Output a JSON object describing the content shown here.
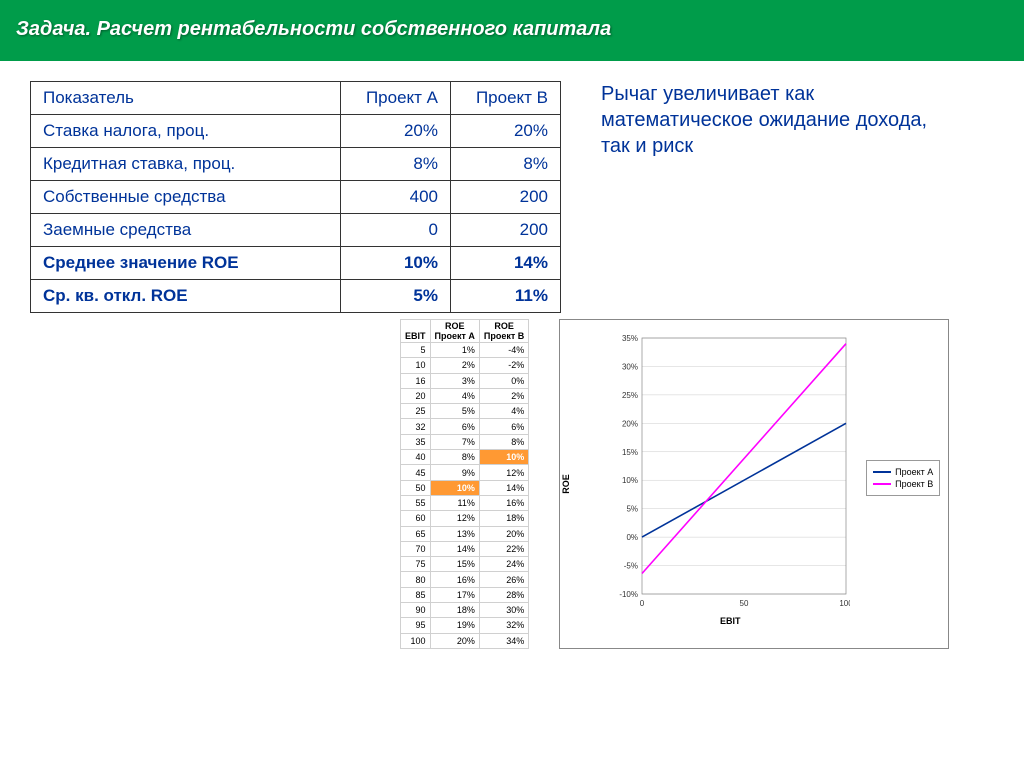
{
  "header": {
    "title": "Задача. Расчет рентабельности собственного капитала"
  },
  "main_table": {
    "headers": [
      "Показатель",
      "Проект А",
      "Проект В"
    ],
    "rows": [
      {
        "label": "Ставка налога, проц.",
        "a": "20%",
        "b": "20%",
        "bold": false
      },
      {
        "label": "Кредитная ставка, проц.",
        "a": "8%",
        "b": "8%",
        "bold": false
      },
      {
        "label": "Собственные средства",
        "a": "400",
        "b": "200",
        "bold": false
      },
      {
        "label": "Заемные средства",
        "a": "0",
        "b": "200",
        "bold": false
      },
      {
        "label": "Среднее значение ROE",
        "a": "10%",
        "b": "14%",
        "bold": true
      },
      {
        "label": "Ср. кв. откл. ROE",
        "a": "5%",
        "b": "11%",
        "bold": true
      }
    ]
  },
  "sidebar_text": "Рычаг увеличивает как математическое ожидание дохода, так и риск",
  "mini_table": {
    "headers": [
      "EBIT",
      "ROE Проект А",
      "ROE Проект В"
    ],
    "rows": [
      {
        "ebit": "5",
        "a": "1%",
        "b": "-4%"
      },
      {
        "ebit": "10",
        "a": "2%",
        "b": "-2%"
      },
      {
        "ebit": "16",
        "a": "3%",
        "b": "0%"
      },
      {
        "ebit": "20",
        "a": "4%",
        "b": "2%"
      },
      {
        "ebit": "25",
        "a": "5%",
        "b": "4%"
      },
      {
        "ebit": "32",
        "a": "6%",
        "b": "6%"
      },
      {
        "ebit": "35",
        "a": "7%",
        "b": "8%"
      },
      {
        "ebit": "40",
        "a": "8%",
        "b": "10%",
        "hl_b": true
      },
      {
        "ebit": "45",
        "a": "9%",
        "b": "12%"
      },
      {
        "ebit": "50",
        "a": "10%",
        "b": "14%",
        "hl_a": true
      },
      {
        "ebit": "55",
        "a": "11%",
        "b": "16%"
      },
      {
        "ebit": "60",
        "a": "12%",
        "b": "18%"
      },
      {
        "ebit": "65",
        "a": "13%",
        "b": "20%"
      },
      {
        "ebit": "70",
        "a": "14%",
        "b": "22%"
      },
      {
        "ebit": "75",
        "a": "15%",
        "b": "24%"
      },
      {
        "ebit": "80",
        "a": "16%",
        "b": "26%"
      },
      {
        "ebit": "85",
        "a": "17%",
        "b": "28%"
      },
      {
        "ebit": "90",
        "a": "18%",
        "b": "30%"
      },
      {
        "ebit": "95",
        "a": "19%",
        "b": "32%"
      },
      {
        "ebit": "100",
        "a": "20%",
        "b": "34%"
      }
    ]
  },
  "chart": {
    "type": "line",
    "xlabel": "EBIT",
    "ylabel": "ROE",
    "xlim": [
      0,
      100
    ],
    "ylim": [
      -10,
      35
    ],
    "yticks": [
      -10,
      -5,
      0,
      5,
      10,
      15,
      20,
      25,
      30,
      35
    ],
    "xticks": [
      0,
      50,
      100
    ],
    "grid_color": "#cccccc",
    "background_color": "#ffffff",
    "border_color": "#888888",
    "series": [
      {
        "name": "Проект А",
        "color": "#003399",
        "points": [
          [
            0,
            0
          ],
          [
            100,
            20
          ]
        ]
      },
      {
        "name": "Проект В",
        "color": "#ff00ff",
        "points": [
          [
            0,
            -6.4
          ],
          [
            100,
            34
          ]
        ]
      }
    ],
    "label_fontsize": 9
  },
  "colors": {
    "header_bg": "#009c4a",
    "text_blue": "#003399",
    "highlight": "#ff9933"
  }
}
